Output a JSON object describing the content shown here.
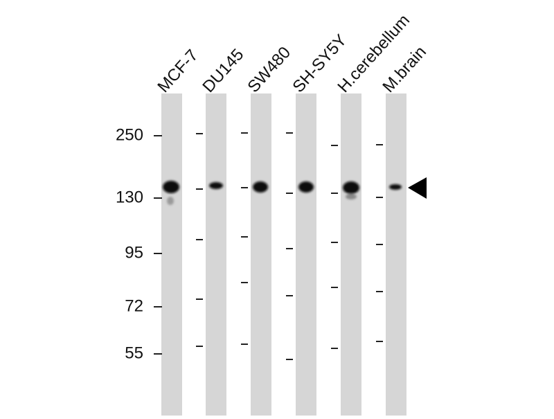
{
  "lanes": [
    "MCF-7",
    "DU145",
    "SW480",
    "SH-SY5Y",
    "H.cerebellum",
    "M.brain"
  ],
  "markers": [
    "250",
    "130",
    "95",
    "72",
    "55"
  ]
}
